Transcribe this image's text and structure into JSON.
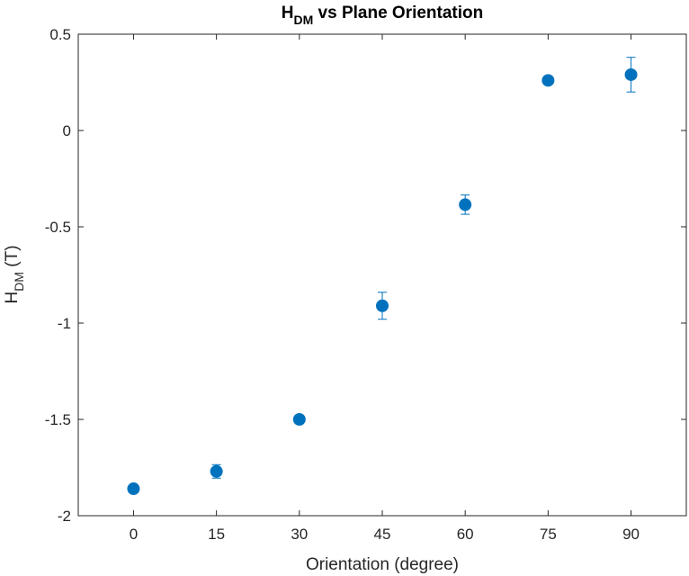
{
  "chart_data": {
    "type": "scatter",
    "title_main": "H",
    "title_sub": "DM",
    "title_rest": " vs Plane Orientation",
    "xlabel": "Orientation (degree)",
    "ylabel_main": "H",
    "ylabel_sub": "DM",
    "ylabel_rest": " (T)",
    "xlim": [
      -10,
      100
    ],
    "ylim": [
      -2,
      0.5
    ],
    "xticks": [
      0,
      15,
      30,
      45,
      60,
      75,
      90
    ],
    "yticks": [
      -2,
      -1.5,
      -1,
      -0.5,
      0,
      0.5
    ],
    "xtick_labels": [
      "0",
      "15",
      "30",
      "45",
      "60",
      "75",
      "90"
    ],
    "ytick_labels": [
      "-2",
      "-1.5",
      "-1",
      "-0.5",
      "0",
      "0.5"
    ],
    "grid": false,
    "marker_color": "#0072BD",
    "points": [
      {
        "x": 0,
        "y": -1.86,
        "err": 0.01
      },
      {
        "x": 15,
        "y": -1.77,
        "err": 0.035
      },
      {
        "x": 30,
        "y": -1.5,
        "err": 0.02
      },
      {
        "x": 45,
        "y": -0.91,
        "err": 0.07
      },
      {
        "x": 60,
        "y": -0.385,
        "err": 0.05
      },
      {
        "x": 75,
        "y": 0.26,
        "err": 0.01
      },
      {
        "x": 90,
        "y": 0.29,
        "err": 0.09
      }
    ]
  }
}
